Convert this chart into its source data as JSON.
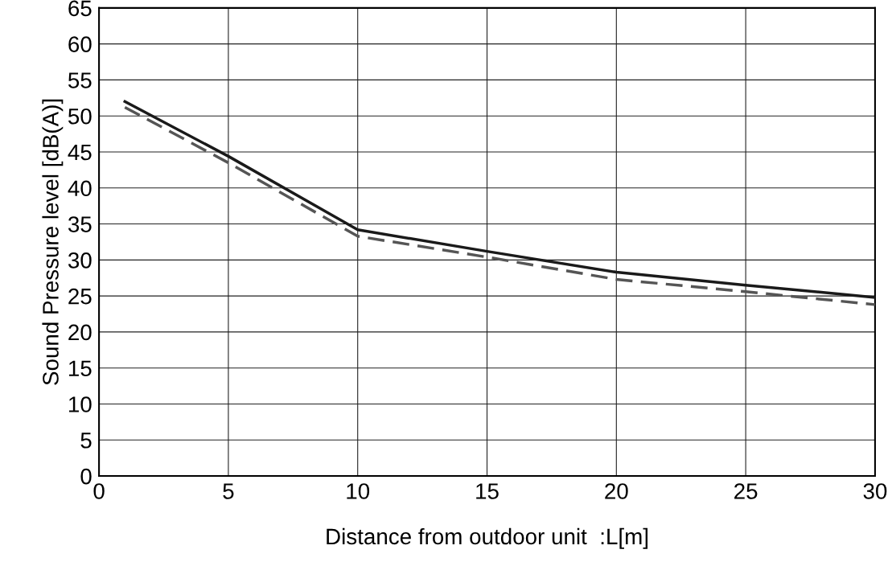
{
  "chart_data": {
    "type": "line",
    "xlabel": "Distance from outdoor unit  :L[m]",
    "ylabel": "Sound Pressure level [dB(A)]",
    "xlim": [
      0,
      30
    ],
    "xticks": [
      0,
      5,
      10,
      15,
      20,
      25,
      30
    ],
    "ylim": [
      0,
      65
    ],
    "yticks": [
      0,
      5,
      10,
      15,
      20,
      25,
      30,
      35,
      40,
      45,
      50,
      55,
      60,
      65
    ],
    "grid": true,
    "series": [
      {
        "color": "#1a1a1a",
        "line_style": "solid",
        "x": [
          1,
          5,
          10,
          15,
          20,
          25,
          30
        ],
        "values": [
          52.0,
          44.4,
          34.2,
          31.2,
          28.3,
          26.5,
          24.8
        ]
      },
      {
        "color": "#555555",
        "line_style": "dashed",
        "x": [
          1,
          5,
          10,
          15,
          20,
          25,
          30
        ],
        "values": [
          51.2,
          43.5,
          33.3,
          30.4,
          27.3,
          25.6,
          23.8
        ]
      }
    ]
  }
}
